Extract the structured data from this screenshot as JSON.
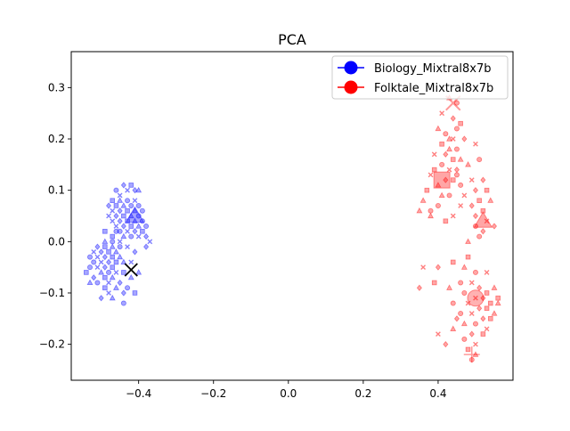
{
  "chart_data": {
    "type": "scatter",
    "title": "PCA",
    "xlabel": "",
    "ylabel": "",
    "xlim": [
      -0.58,
      0.6
    ],
    "ylim": [
      -0.27,
      0.37
    ],
    "x_ticks": [
      -0.4,
      -0.2,
      0.0,
      0.2,
      0.4
    ],
    "x_tick_labels": [
      "−0.4",
      "−0.2",
      "0.0",
      "0.2",
      "0.4"
    ],
    "y_ticks": [
      -0.2,
      -0.1,
      0.0,
      0.1,
      0.2,
      0.3
    ],
    "y_tick_labels": [
      "−0.2",
      "−0.1",
      "0.0",
      "0.1",
      "0.2",
      "0.3"
    ],
    "grid": false,
    "legend": {
      "position": "upper right",
      "entries": [
        {
          "label": "Biology_Mixtral8x7b",
          "color": "#0000ff",
          "marker": "circle"
        },
        {
          "label": "Folktale_Mixtral8x7b",
          "color": "#ff0000",
          "marker": "circle"
        }
      ]
    },
    "series": [
      {
        "name": "Biology_Mixtral8x7b",
        "color": "#0000ff",
        "points": [
          [
            -0.46,
            0.1
          ],
          [
            -0.43,
            0.1
          ],
          [
            -0.41,
            0.1
          ],
          [
            -0.47,
            0.08
          ],
          [
            -0.45,
            0.08
          ],
          [
            -0.43,
            0.08
          ],
          [
            -0.41,
            0.08
          ],
          [
            -0.48,
            0.07
          ],
          [
            -0.46,
            0.07
          ],
          [
            -0.44,
            0.07
          ],
          [
            -0.42,
            0.07
          ],
          [
            -0.47,
            0.06
          ],
          [
            -0.45,
            0.06
          ],
          [
            -0.43,
            0.06
          ],
          [
            -0.41,
            0.06
          ],
          [
            -0.39,
            0.06
          ],
          [
            -0.48,
            0.05
          ],
          [
            -0.46,
            0.05
          ],
          [
            -0.44,
            0.05
          ],
          [
            -0.42,
            0.05
          ],
          [
            -0.4,
            0.05
          ],
          [
            -0.47,
            0.04
          ],
          [
            -0.45,
            0.04
          ],
          [
            -0.43,
            0.04
          ],
          [
            -0.41,
            0.04
          ],
          [
            -0.39,
            0.04
          ],
          [
            -0.46,
            0.03
          ],
          [
            -0.44,
            0.03
          ],
          [
            -0.42,
            0.03
          ],
          [
            -0.4,
            0.03
          ],
          [
            -0.45,
            0.02
          ],
          [
            -0.43,
            0.02
          ],
          [
            -0.41,
            0.02
          ],
          [
            -0.39,
            0.02
          ],
          [
            -0.44,
            0.01
          ],
          [
            -0.42,
            0.01
          ],
          [
            -0.4,
            0.01
          ],
          [
            -0.38,
            0.01
          ],
          [
            -0.47,
            0.01
          ],
          [
            -0.49,
            0.0
          ],
          [
            -0.47,
            0.0
          ],
          [
            -0.45,
            0.0
          ],
          [
            -0.51,
            -0.01
          ],
          [
            -0.49,
            -0.01
          ],
          [
            -0.47,
            -0.01
          ],
          [
            -0.45,
            -0.01
          ],
          [
            -0.52,
            -0.02
          ],
          [
            -0.5,
            -0.02
          ],
          [
            -0.48,
            -0.02
          ],
          [
            -0.46,
            -0.02
          ],
          [
            -0.53,
            -0.03
          ],
          [
            -0.51,
            -0.03
          ],
          [
            -0.49,
            -0.03
          ],
          [
            -0.47,
            -0.03
          ],
          [
            -0.45,
            -0.03
          ],
          [
            -0.52,
            -0.04
          ],
          [
            -0.5,
            -0.04
          ],
          [
            -0.48,
            -0.04
          ],
          [
            -0.46,
            -0.04
          ],
          [
            -0.44,
            -0.04
          ],
          [
            -0.53,
            -0.05
          ],
          [
            -0.51,
            -0.05
          ],
          [
            -0.49,
            -0.05
          ],
          [
            -0.47,
            -0.05
          ],
          [
            -0.5,
            -0.06
          ],
          [
            -0.48,
            -0.06
          ],
          [
            -0.46,
            -0.06
          ],
          [
            -0.52,
            -0.07
          ],
          [
            -0.49,
            -0.07
          ],
          [
            -0.47,
            -0.07
          ],
          [
            -0.51,
            -0.08
          ],
          [
            -0.48,
            -0.08
          ],
          [
            -0.45,
            -0.08
          ],
          [
            -0.49,
            -0.09
          ],
          [
            -0.46,
            -0.09
          ],
          [
            -0.43,
            -0.09
          ],
          [
            -0.48,
            -0.1
          ],
          [
            -0.44,
            -0.1
          ],
          [
            -0.41,
            -0.1
          ],
          [
            -0.47,
            -0.11
          ],
          [
            -0.44,
            -0.12
          ],
          [
            -0.45,
            0.09
          ],
          [
            -0.44,
            0.11
          ],
          [
            -0.42,
            0.11
          ],
          [
            -0.4,
            0.1
          ],
          [
            -0.38,
            0.03
          ],
          [
            -0.37,
            0.0
          ],
          [
            -0.38,
            -0.01
          ],
          [
            -0.54,
            -0.06
          ],
          [
            -0.42,
            -0.07
          ],
          [
            -0.4,
            0.07
          ],
          [
            -0.43,
            -0.01
          ],
          [
            -0.41,
            -0.02
          ],
          [
            -0.44,
            -0.06
          ],
          [
            -0.53,
            -0.08
          ],
          [
            -0.46,
            0.02
          ],
          [
            -0.42,
            -0.04
          ],
          [
            -0.5,
            -0.11
          ],
          [
            -0.49,
            0.02
          ],
          [
            -0.4,
            -0.06
          ]
        ]
      },
      {
        "name": "Folktale_Mixtral8x7b",
        "color": "#ff0000",
        "points": [
          [
            0.43,
            0.28
          ],
          [
            0.45,
            0.27
          ],
          [
            0.41,
            0.25
          ],
          [
            0.44,
            0.24
          ],
          [
            0.46,
            0.23
          ],
          [
            0.4,
            0.22
          ],
          [
            0.42,
            0.21
          ],
          [
            0.44,
            0.2
          ],
          [
            0.47,
            0.2
          ],
          [
            0.41,
            0.19
          ],
          [
            0.43,
            0.18
          ],
          [
            0.45,
            0.18
          ],
          [
            0.5,
            0.19
          ],
          [
            0.42,
            0.17
          ],
          [
            0.44,
            0.16
          ],
          [
            0.46,
            0.16
          ],
          [
            0.41,
            0.15
          ],
          [
            0.43,
            0.14
          ],
          [
            0.45,
            0.14
          ],
          [
            0.39,
            0.14
          ],
          [
            0.48,
            0.15
          ],
          [
            0.51,
            0.16
          ],
          [
            0.38,
            0.13
          ],
          [
            0.42,
            0.12
          ],
          [
            0.44,
            0.12
          ],
          [
            0.4,
            0.11
          ],
          [
            0.46,
            0.11
          ],
          [
            0.49,
            0.12
          ],
          [
            0.52,
            0.12
          ],
          [
            0.37,
            0.1
          ],
          [
            0.41,
            0.09
          ],
          [
            0.43,
            0.09
          ],
          [
            0.47,
            0.09
          ],
          [
            0.5,
            0.1
          ],
          [
            0.53,
            0.1
          ],
          [
            0.36,
            0.08
          ],
          [
            0.4,
            0.07
          ],
          [
            0.46,
            0.07
          ],
          [
            0.49,
            0.07
          ],
          [
            0.51,
            0.08
          ],
          [
            0.54,
            0.08
          ],
          [
            0.38,
            0.06
          ],
          [
            0.44,
            0.05
          ],
          [
            0.5,
            0.05
          ],
          [
            0.52,
            0.06
          ],
          [
            0.35,
            0.06
          ],
          [
            0.5,
            0.03
          ],
          [
            0.53,
            0.04
          ],
          [
            0.55,
            0.03
          ],
          [
            0.42,
            0.04
          ],
          [
            0.48,
            0.0
          ],
          [
            0.51,
            0.01
          ],
          [
            0.36,
            -0.05
          ],
          [
            0.4,
            -0.05
          ],
          [
            0.44,
            -0.04
          ],
          [
            0.47,
            -0.05
          ],
          [
            0.5,
            -0.06
          ],
          [
            0.53,
            -0.06
          ],
          [
            0.35,
            -0.09
          ],
          [
            0.39,
            -0.08
          ],
          [
            0.43,
            -0.09
          ],
          [
            0.46,
            -0.08
          ],
          [
            0.49,
            -0.08
          ],
          [
            0.51,
            -0.09
          ],
          [
            0.53,
            -0.1
          ],
          [
            0.55,
            -0.09
          ],
          [
            0.47,
            -0.1
          ],
          [
            0.5,
            -0.11
          ],
          [
            0.52,
            -0.11
          ],
          [
            0.54,
            -0.12
          ],
          [
            0.56,
            -0.12
          ],
          [
            0.44,
            -0.12
          ],
          [
            0.48,
            -0.12
          ],
          [
            0.51,
            -0.13
          ],
          [
            0.53,
            -0.13
          ],
          [
            0.55,
            -0.14
          ],
          [
            0.46,
            -0.14
          ],
          [
            0.49,
            -0.14
          ],
          [
            0.52,
            -0.15
          ],
          [
            0.54,
            -0.15
          ],
          [
            0.47,
            -0.16
          ],
          [
            0.5,
            -0.16
          ],
          [
            0.53,
            -0.17
          ],
          [
            0.49,
            -0.18
          ],
          [
            0.52,
            -0.18
          ],
          [
            0.44,
            -0.17
          ],
          [
            0.47,
            -0.19
          ],
          [
            0.5,
            -0.2
          ],
          [
            0.42,
            -0.2
          ],
          [
            0.48,
            -0.21
          ],
          [
            0.5,
            -0.22
          ],
          [
            0.49,
            -0.23
          ],
          [
            0.4,
            -0.18
          ],
          [
            0.45,
            -0.15
          ],
          [
            0.56,
            -0.11
          ],
          [
            0.43,
            0.2
          ],
          [
            0.45,
            0.22
          ],
          [
            0.39,
            0.17
          ],
          [
            0.52,
            0.02
          ],
          [
            0.48,
            -0.03
          ],
          [
            0.38,
            0.05
          ],
          [
            0.45,
            0.13
          ]
        ]
      }
    ],
    "highlighted_markers": [
      {
        "series": "Biology_Mixtral8x7b",
        "shape": "triangle",
        "x": -0.41,
        "y": 0.05
      },
      {
        "series": "Folktale_Mixtral8x7b",
        "shape": "square",
        "x": 0.41,
        "y": 0.12
      },
      {
        "series": "Folktale_Mixtral8x7b",
        "shape": "triangle",
        "x": 0.52,
        "y": 0.04
      },
      {
        "series": "Folktale_Mixtral8x7b",
        "shape": "x",
        "x": 0.44,
        "y": 0.27
      },
      {
        "series": "Folktale_Mixtral8x7b",
        "shape": "circle",
        "x": 0.5,
        "y": -0.11
      },
      {
        "series": "Folktale_Mixtral8x7b",
        "shape": "plus",
        "x": 0.49,
        "y": -0.22
      }
    ],
    "reference_point": {
      "shape": "x",
      "color": "#000000",
      "x": -0.42,
      "y": -0.055
    }
  }
}
